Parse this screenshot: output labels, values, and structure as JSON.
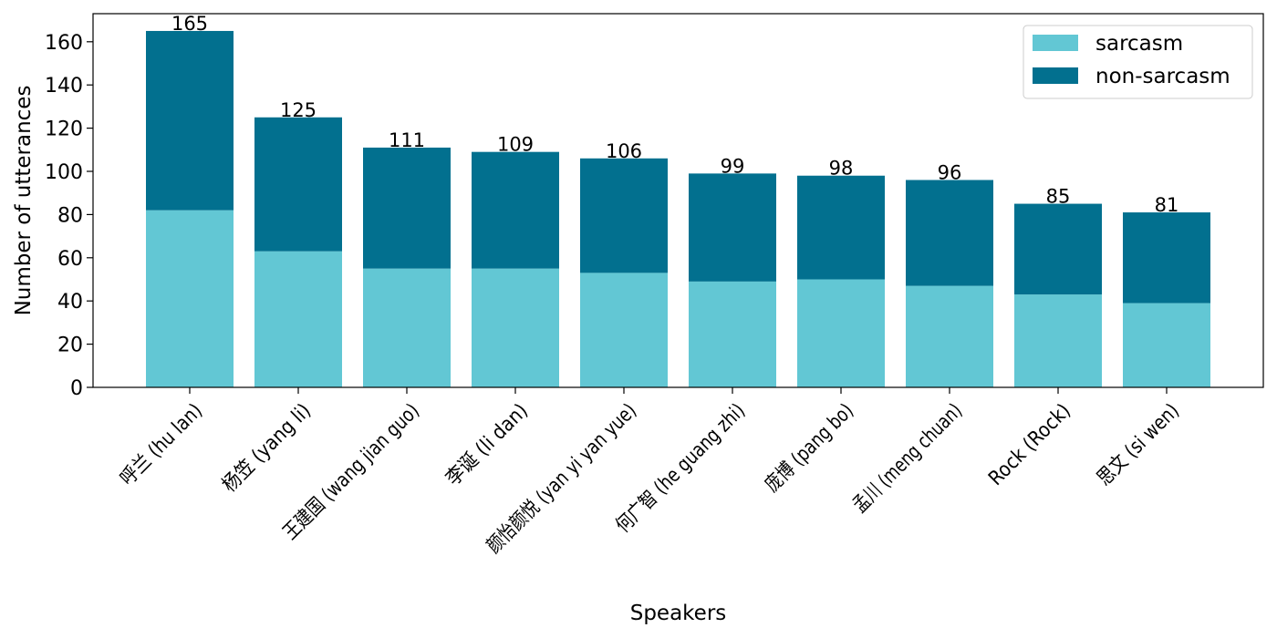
{
  "chart_data": {
    "type": "bar",
    "stacked": true,
    "categories": [
      "呼兰 (hu lan)",
      "杨笠 (yang li)",
      "王建国 (wang jian guo)",
      "李诞 (li dan)",
      "颜怡颜悦 (yan yi yan yue)",
      "何广智 (he guang zhi)",
      "庞博 (pang bo)",
      "孟川 (meng chuan)",
      "Rock (Rock)",
      "思文 (si wen)"
    ],
    "series": [
      {
        "name": "sarcasm",
        "color": "#62c7d4",
        "values": [
          82,
          63,
          55,
          55,
          53,
          49,
          50,
          47,
          43,
          39
        ]
      },
      {
        "name": "non-sarcasm",
        "color": "#02708f",
        "values": [
          83,
          62,
          56,
          54,
          53,
          50,
          48,
          49,
          42,
          42
        ]
      }
    ],
    "totals": [
      165,
      125,
      111,
      109,
      106,
      99,
      98,
      96,
      85,
      81
    ],
    "xlabel": "Speakers",
    "ylabel": "Number of utterances",
    "ylim": [
      0,
      173
    ],
    "yticks": [
      0,
      20,
      40,
      60,
      80,
      100,
      120,
      140,
      160
    ],
    "grid": false,
    "legend_position": "top-right"
  }
}
